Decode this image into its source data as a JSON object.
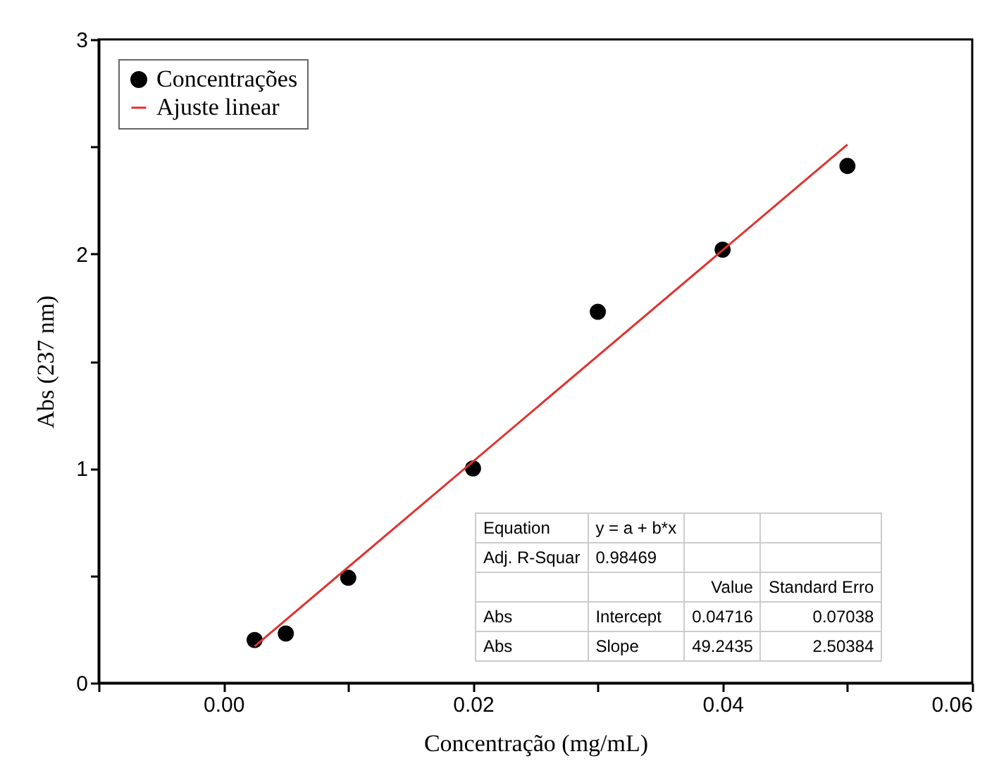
{
  "chart_data": {
    "type": "scatter",
    "xlabel": "Concentração (mg/mL)",
    "ylabel": "Abs (237 nm)",
    "xlim": [
      -0.01,
      0.06
    ],
    "ylim": [
      0,
      3
    ],
    "xticks": [
      {
        "value": -0.01,
        "label": null
      },
      {
        "value": 0,
        "label": "0.00"
      },
      {
        "value": 0.01,
        "label": null
      },
      {
        "value": 0.02,
        "label": "0.02"
      },
      {
        "value": 0.03,
        "label": null
      },
      {
        "value": 0.04,
        "label": "0.04"
      },
      {
        "value": 0.05,
        "label": null
      },
      {
        "value": 0.06,
        "label": "0.06"
      }
    ],
    "yticks": [
      0,
      {
        "value": 0.5,
        "label": null
      },
      1,
      {
        "value": 1.5,
        "label": null
      },
      2,
      {
        "value": 2.5,
        "label": null
      },
      3
    ],
    "legend": "top left",
    "grid": false,
    "series": [
      {
        "name": "Concentrações",
        "marker": "circle",
        "color": "#000000",
        "x": [
          0.0025,
          0.005,
          0.01,
          0.02,
          0.03,
          0.04,
          0.05
        ],
        "values": [
          0.2,
          0.23,
          0.49,
          1.0,
          1.73,
          2.02,
          2.41
        ]
      },
      {
        "name": "Ajuste linear",
        "type": "line",
        "marker": "none",
        "color": "#e0312f",
        "x": [
          0.0025,
          0.05
        ],
        "values": [
          0.17,
          2.51
        ]
      }
    ],
    "annotations": [
      "Equation",
      "y = a + b*x",
      "Adj. R-Squar",
      "0.98469",
      "Value",
      "Standard Erro",
      "Abs",
      "Intercept",
      "0.04716",
      "0.07038",
      "Abs",
      "Slope",
      "49.2435",
      "2.50384"
    ]
  }
}
